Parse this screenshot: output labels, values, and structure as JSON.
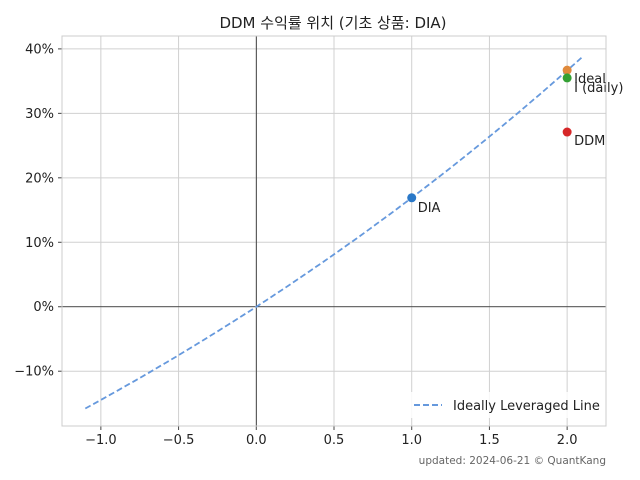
{
  "chart_data": {
    "type": "scatter",
    "title": "DDM 수익률 위치 (기초 상품: DIA)",
    "xlabel": "",
    "ylabel": "",
    "xlim": [
      -1.25,
      2.25
    ],
    "ylim": [
      -18.5,
      42
    ],
    "x_ticks": [
      -1.0,
      -0.5,
      0.0,
      0.5,
      1.0,
      1.5,
      2.0
    ],
    "x_tick_labels": [
      "−1.0",
      "−0.5",
      "0.0",
      "0.5",
      "1.0",
      "1.5",
      "2.0"
    ],
    "y_ticks": [
      -10,
      0,
      10,
      20,
      30,
      40
    ],
    "y_tick_labels": [
      "−10%",
      "0%",
      "10%",
      "20%",
      "30%",
      "40%"
    ],
    "grid": true,
    "legend_position": "bottom-right",
    "line": {
      "name": "Ideally Leveraged Line",
      "style": "dashed",
      "color": "#6699dd",
      "x_range": [
        -1.1,
        2.1
      ],
      "base_return": 16.9
    },
    "points": [
      {
        "label": "DIA",
        "x": 1.0,
        "y": 16.9,
        "color": "#2a78c8"
      },
      {
        "label": "Ideal",
        "x": 2.0,
        "y": 36.7,
        "color": "#e08a3c"
      },
      {
        "label": "I (daily)",
        "x": 2.0,
        "y": 35.5,
        "color": "#33a033"
      },
      {
        "label": "DDM",
        "x": 2.0,
        "y": 27.1,
        "color": "#d62728"
      }
    ],
    "footer": "updated: 2024-06-21 © QuantKang"
  }
}
